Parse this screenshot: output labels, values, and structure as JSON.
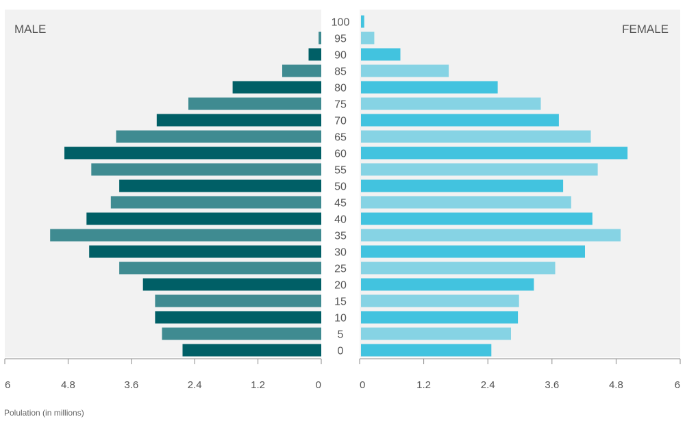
{
  "chart_data": {
    "type": "bar",
    "subtype": "population-pyramid",
    "categories": [
      "0",
      "5",
      "10",
      "15",
      "20",
      "25",
      "30",
      "35",
      "40",
      "45",
      "50",
      "55",
      "60",
      "65",
      "70",
      "75",
      "80",
      "85",
      "90",
      "95",
      "100"
    ],
    "series": [
      {
        "name": "MALE",
        "values": [
          2.63,
          3.02,
          3.15,
          3.15,
          3.38,
          3.83,
          4.4,
          5.14,
          4.45,
          3.99,
          3.83,
          4.36,
          4.87,
          3.89,
          3.12,
          2.52,
          1.68,
          0.74,
          0.24,
          0.05,
          0.0
        ]
      },
      {
        "name": "FEMALE",
        "values": [
          2.45,
          2.82,
          2.95,
          2.97,
          3.25,
          3.65,
          4.21,
          4.88,
          4.35,
          3.95,
          3.8,
          4.45,
          5.01,
          4.32,
          3.72,
          3.38,
          2.57,
          1.65,
          0.74,
          0.25,
          0.06
        ]
      }
    ],
    "xlabel": "Polulation (in millions)",
    "x_ticks": [
      "6",
      "4.8",
      "3.6",
      "2.4",
      "1.2",
      "0"
    ],
    "x_ticks_right": [
      "0",
      "1.2",
      "2.4",
      "3.6",
      "4.8",
      "6"
    ],
    "xlim": [
      0,
      6
    ],
    "colors": {
      "male_dark": "#005f66",
      "male_light": "#3f8b91",
      "female_dark": "#42c3df",
      "female_light": "#86d3e4",
      "panel_bg": "#f2f2f2",
      "axis": "#888888"
    }
  }
}
